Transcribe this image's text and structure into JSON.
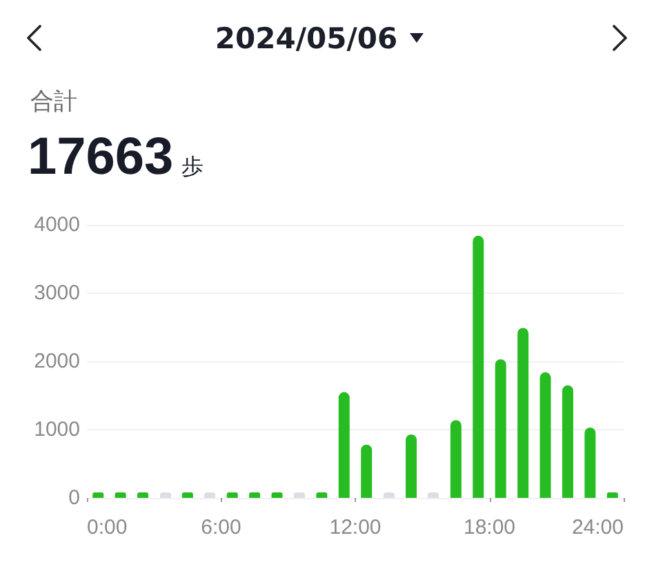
{
  "chart_data": {
    "type": "bar",
    "title": "2024/05/06",
    "annotations": [
      "合計",
      "17663",
      "歩"
    ],
    "x": [
      0.5,
      1.5,
      2.5,
      3.5,
      4.5,
      5.5,
      6.5,
      7.5,
      8.5,
      9.5,
      10.5,
      11.5,
      12.5,
      13.5,
      14.5,
      15.5,
      16.5,
      17.5,
      18.5,
      19.5,
      20.5,
      21.5,
      22.5,
      23.5
    ],
    "values": [
      80,
      80,
      80,
      0,
      80,
      0,
      80,
      80,
      80,
      0,
      80,
      1550,
      780,
      0,
      930,
      0,
      1140,
      3840,
      2030,
      2490,
      1840,
      1650,
      1030,
      80
    ],
    "colors": [
      "#27bd22",
      "#27bd22",
      "#27bd22",
      "#dcdde5",
      "#27bd22",
      "#dcdde5",
      "#27bd22",
      "#27bd22",
      "#27bd22",
      "#dcdde5",
      "#27bd22",
      "#27bd22",
      "#27bd22",
      "#dcdde5",
      "#27bd22",
      "#dcdde5",
      "#27bd22",
      "#27bd22",
      "#27bd22",
      "#27bd22",
      "#27bd22",
      "#27bd22",
      "#27bd22",
      "#27bd22"
    ],
    "xlim": [
      0,
      24
    ],
    "xticks": [
      {
        "value": 0,
        "label": "0:00"
      },
      {
        "value": 6,
        "label": "6:00"
      },
      {
        "value": 12,
        "label": "12:00"
      },
      {
        "value": 18,
        "label": "18:00"
      },
      {
        "value": 24,
        "label": "24:00"
      }
    ],
    "ylim": [
      0,
      4000
    ],
    "yticks": [
      0,
      1000,
      2000,
      3000,
      4000
    ],
    "grid": "y"
  }
}
